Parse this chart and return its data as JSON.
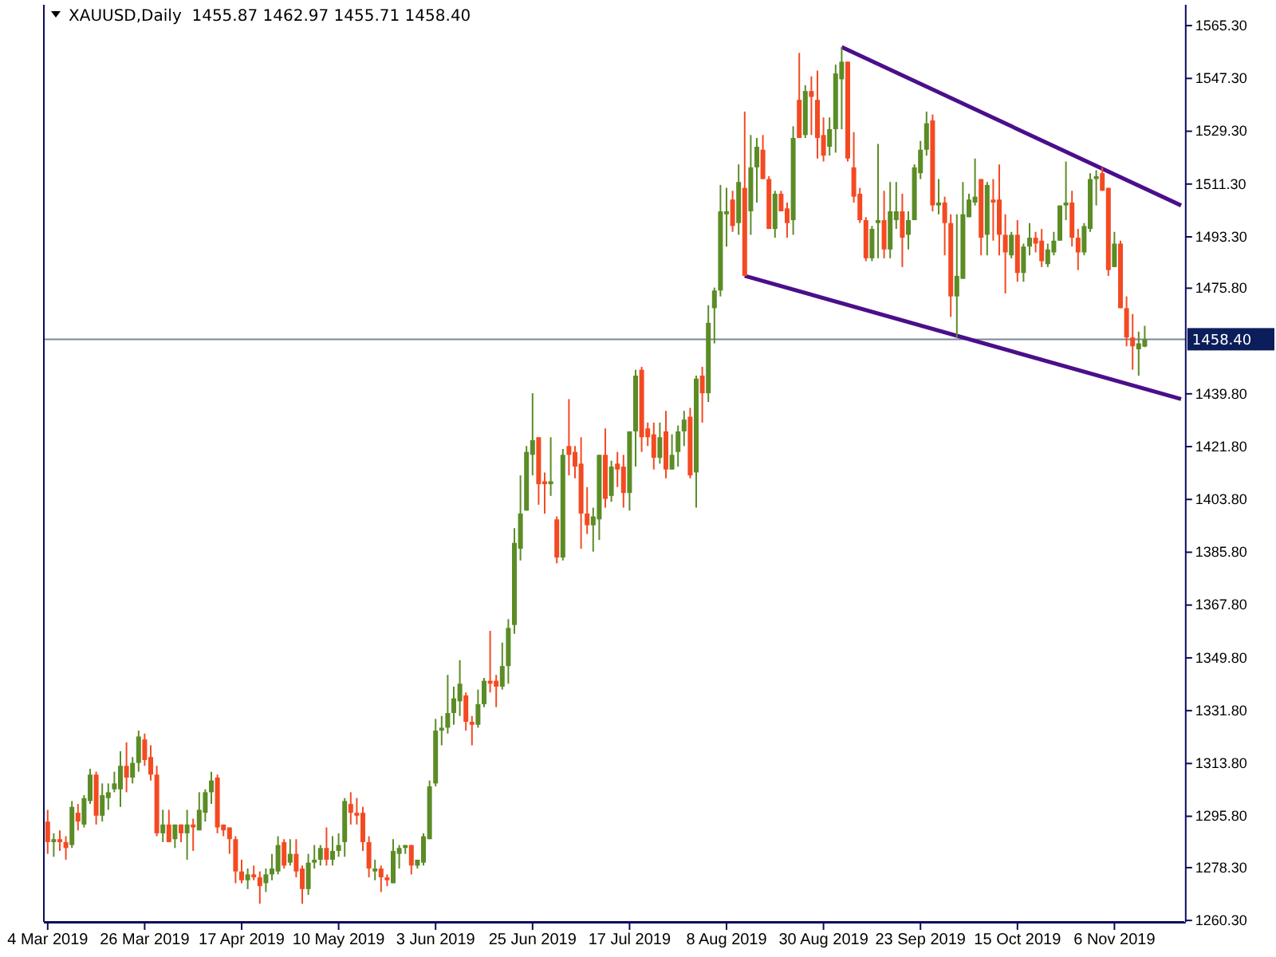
{
  "chart_data": {
    "type": "candlestick",
    "title": "XAUUSD,Daily  1455.87 1462.97 1455.71 1458.40",
    "categories": [
      "4 Mar 2019",
      null,
      null,
      null,
      null,
      null,
      null,
      null,
      null,
      null,
      null,
      null,
      null,
      null,
      null,
      null,
      "26 Mar 2019",
      null,
      null,
      null,
      null,
      null,
      null,
      null,
      null,
      null,
      null,
      null,
      null,
      null,
      null,
      null,
      "17 Apr 2019",
      null,
      null,
      null,
      null,
      null,
      null,
      null,
      null,
      null,
      null,
      null,
      null,
      null,
      null,
      null,
      "10 May 2019",
      null,
      null,
      null,
      null,
      null,
      null,
      null,
      null,
      null,
      null,
      null,
      null,
      null,
      null,
      null,
      "3 Jun 2019",
      null,
      null,
      null,
      null,
      null,
      null,
      null,
      null,
      null,
      null,
      null,
      null,
      null,
      null,
      null,
      "25 Jun 2019",
      null,
      null,
      null,
      null,
      null,
      null,
      null,
      null,
      null,
      null,
      null,
      null,
      null,
      null,
      null,
      "17 Jul 2019",
      null,
      null,
      null,
      null,
      null,
      null,
      null,
      null,
      null,
      null,
      null,
      null,
      null,
      null,
      null,
      "8 Aug 2019",
      null,
      null,
      null,
      null,
      null,
      null,
      null,
      null,
      null,
      null,
      null,
      null,
      null,
      null,
      null,
      "30 Aug 2019",
      null,
      null,
      null,
      null,
      null,
      null,
      null,
      null,
      null,
      null,
      null,
      null,
      null,
      null,
      null,
      "23 Sep 2019",
      null,
      null,
      null,
      null,
      null,
      null,
      null,
      null,
      null,
      null,
      null,
      null,
      null,
      null,
      null,
      "15 Oct 2019",
      null,
      null,
      null,
      null,
      null,
      null,
      null,
      null,
      null,
      null,
      null,
      null,
      null,
      null,
      null,
      "6 Nov 2019",
      null,
      null,
      null,
      null,
      null,
      null,
      null,
      null,
      null,
      null,
      null
    ],
    "ohlc": [
      [
        1294,
        1298,
        1283,
        1287
      ],
      [
        1287,
        1290,
        1282,
        1288
      ],
      [
        1288,
        1291,
        1284,
        1287
      ],
      [
        1287,
        1289,
        1281,
        1285
      ],
      [
        1286,
        1301,
        1285,
        1299
      ],
      [
        1297,
        1300,
        1291,
        1294
      ],
      [
        1293,
        1303,
        1292,
        1302
      ],
      [
        1301,
        1312,
        1300,
        1310
      ],
      [
        1310,
        1311,
        1293,
        1296
      ],
      [
        1296,
        1307,
        1294,
        1303
      ],
      [
        1302,
        1307,
        1298,
        1304
      ],
      [
        1305,
        1311,
        1304,
        1307
      ],
      [
        1305,
        1318,
        1299,
        1313
      ],
      [
        1313,
        1321,
        1304,
        1309
      ],
      [
        1309,
        1316,
        1307,
        1314
      ],
      [
        1314,
        1325,
        1311,
        1323
      ],
      [
        1322,
        1324,
        1313,
        1315
      ],
      [
        1316,
        1320,
        1308,
        1310
      ],
      [
        1310,
        1313,
        1289,
        1290
      ],
      [
        1290,
        1298,
        1287,
        1293
      ],
      [
        1293,
        1298,
        1287,
        1287
      ],
      [
        1288,
        1293,
        1285,
        1293
      ],
      [
        1293,
        1293,
        1287,
        1290
      ],
      [
        1290,
        1298,
        1281,
        1293
      ],
      [
        1293,
        1295,
        1284,
        1292
      ],
      [
        1291,
        1304,
        1291,
        1298
      ],
      [
        1297,
        1305,
        1294,
        1304
      ],
      [
        1304,
        1311,
        1300,
        1308
      ],
      [
        1309,
        1310,
        1290,
        1292
      ],
      [
        1293,
        1293,
        1289,
        1291
      ],
      [
        1292,
        1292,
        1283,
        1288
      ],
      [
        1288,
        1289,
        1273,
        1277
      ],
      [
        1277,
        1281,
        1273,
        1274
      ],
      [
        1274,
        1278,
        1271,
        1276
      ],
      [
        1276,
        1279,
        1274,
        1275
      ],
      [
        1275,
        1277,
        1266,
        1272
      ],
      [
        1273,
        1278,
        1270,
        1276
      ],
      [
        1276,
        1283,
        1274,
        1278
      ],
      [
        1277,
        1289,
        1276,
        1286
      ],
      [
        1287,
        1288,
        1278,
        1279
      ],
      [
        1280,
        1288,
        1279,
        1283
      ],
      [
        1283,
        1288,
        1275,
        1277
      ],
      [
        1278,
        1279,
        1266,
        1271
      ],
      [
        1271,
        1283,
        1269,
        1280
      ],
      [
        1280,
        1286,
        1278,
        1281
      ],
      [
        1281,
        1286,
        1279,
        1285
      ],
      [
        1285,
        1292,
        1279,
        1281
      ],
      [
        1281,
        1289,
        1279,
        1284
      ],
      [
        1284,
        1290,
        1282,
        1286
      ],
      [
        1287,
        1302,
        1282,
        1301
      ],
      [
        1300,
        1304,
        1293,
        1297
      ],
      [
        1297,
        1302,
        1293,
        1296
      ],
      [
        1297,
        1299,
        1284,
        1287
      ],
      [
        1287,
        1289,
        1275,
        1278
      ],
      [
        1277,
        1281,
        1274,
        1278
      ],
      [
        1278,
        1279,
        1270,
        1275
      ],
      [
        1275,
        1276,
        1272,
        1274
      ],
      [
        1273,
        1288,
        1273,
        1284
      ],
      [
        1283,
        1286,
        1278,
        1285
      ],
      [
        1285,
        1286,
        1283,
        1286
      ],
      [
        1286,
        1286,
        1276,
        1279
      ],
      [
        1279,
        1281,
        1278,
        1281
      ],
      [
        1280,
        1290,
        1279,
        1289
      ],
      [
        1288,
        1308,
        1288,
        1306
      ],
      [
        1307,
        1329,
        1306,
        1325
      ],
      [
        1325,
        1330,
        1320,
        1326
      ],
      [
        1326,
        1344,
        1324,
        1331
      ],
      [
        1331,
        1340,
        1327,
        1336
      ],
      [
        1335,
        1349,
        1330,
        1341
      ],
      [
        1337,
        1338,
        1325,
        1328
      ],
      [
        1328,
        1330,
        1320,
        1327
      ],
      [
        1327,
        1339,
        1326,
        1334
      ],
      [
        1334,
        1343,
        1333,
        1342
      ],
      [
        1342,
        1359,
        1338,
        1341
      ],
      [
        1342,
        1344,
        1333,
        1340
      ],
      [
        1340,
        1355,
        1339,
        1347
      ],
      [
        1347,
        1363,
        1341,
        1360
      ],
      [
        1361,
        1394,
        1358,
        1389
      ],
      [
        1387,
        1412,
        1383,
        1399
      ],
      [
        1400,
        1422,
        1400,
        1420
      ],
      [
        1419,
        1440,
        1412,
        1424
      ],
      [
        1425,
        1425,
        1402,
        1409
      ],
      [
        1410,
        1413,
        1399,
        1409
      ],
      [
        1409,
        1425,
        1405,
        1410
      ],
      [
        1397,
        1398,
        1382,
        1384
      ],
      [
        1384,
        1421,
        1383,
        1419
      ],
      [
        1422,
        1438,
        1412,
        1419
      ],
      [
        1420,
        1422,
        1411,
        1415
      ],
      [
        1416,
        1425,
        1387,
        1399
      ],
      [
        1399,
        1408,
        1392,
        1395
      ],
      [
        1395,
        1401,
        1386,
        1398
      ],
      [
        1397,
        1419,
        1390,
        1419
      ],
      [
        1419,
        1428,
        1401,
        1404
      ],
      [
        1405,
        1417,
        1403,
        1415
      ],
      [
        1416,
        1420,
        1408,
        1414
      ],
      [
        1415,
        1419,
        1401,
        1406
      ],
      [
        1406,
        1427,
        1400,
        1427
      ],
      [
        1427,
        1448,
        1415,
        1446
      ],
      [
        1448,
        1449,
        1420,
        1425
      ],
      [
        1428,
        1430,
        1422,
        1425
      ],
      [
        1426,
        1430,
        1414,
        1418
      ],
      [
        1418,
        1430,
        1416,
        1425
      ],
      [
        1427,
        1434,
        1411,
        1414
      ],
      [
        1414,
        1426,
        1414,
        1419
      ],
      [
        1420,
        1429,
        1415,
        1427
      ],
      [
        1427,
        1434,
        1422,
        1431
      ],
      [
        1432,
        1435,
        1411,
        1412
      ],
      [
        1413,
        1446,
        1401,
        1445
      ],
      [
        1446,
        1449,
        1430,
        1440
      ],
      [
        1440,
        1470,
        1437,
        1464
      ],
      [
        1469,
        1476,
        1457,
        1475
      ],
      [
        1475,
        1511,
        1473,
        1502
      ],
      [
        1501,
        1510,
        1490,
        1502
      ],
      [
        1506,
        1509,
        1495,
        1497
      ],
      [
        1498,
        1518,
        1494,
        1512
      ],
      [
        1510,
        1536,
        1480,
        1480
      ],
      [
        1502,
        1528,
        1494,
        1517
      ],
      [
        1517,
        1527,
        1505,
        1524
      ],
      [
        1523,
        1528,
        1513,
        1513
      ],
      [
        1513,
        1514,
        1496,
        1496
      ],
      [
        1496,
        1509,
        1493,
        1508
      ],
      [
        1508,
        1509,
        1502,
        1502
      ],
      [
        1503,
        1505,
        1493,
        1498
      ],
      [
        1499,
        1531,
        1494,
        1527
      ],
      [
        1540,
        1556,
        1527,
        1527
      ],
      [
        1528,
        1545,
        1527,
        1543
      ],
      [
        1543,
        1548,
        1528,
        1541
      ],
      [
        1540,
        1550,
        1520,
        1527
      ],
      [
        1528,
        1534,
        1519,
        1521
      ],
      [
        1524,
        1534,
        1521,
        1530
      ],
      [
        1530,
        1552,
        1522,
        1549
      ],
      [
        1547,
        1558,
        1530,
        1553
      ],
      [
        1553,
        1553,
        1519,
        1520
      ],
      [
        1517,
        1529,
        1505,
        1507
      ],
      [
        1508,
        1510,
        1498,
        1499
      ],
      [
        1499,
        1500,
        1485,
        1486
      ],
      [
        1486,
        1497,
        1485,
        1496
      ],
      [
        1498,
        1525,
        1486,
        1499
      ],
      [
        1499,
        1509,
        1486,
        1489
      ],
      [
        1489,
        1512,
        1486,
        1502
      ],
      [
        1499,
        1512,
        1496,
        1502
      ],
      [
        1502,
        1508,
        1483,
        1493
      ],
      [
        1494,
        1502,
        1489,
        1499
      ],
      [
        1499,
        1518,
        1499,
        1517
      ],
      [
        1515,
        1526,
        1513,
        1523
      ],
      [
        1523,
        1536,
        1521,
        1532
      ],
      [
        1533,
        1535,
        1502,
        1504
      ],
      [
        1504,
        1513,
        1501,
        1505
      ],
      [
        1505,
        1507,
        1487,
        1498
      ],
      [
        1498,
        1501,
        1466,
        1473
      ],
      [
        1473,
        1501,
        1459,
        1480
      ],
      [
        1479,
        1512,
        1479,
        1501
      ],
      [
        1500,
        1508,
        1500,
        1506
      ],
      [
        1505,
        1520,
        1504,
        1507
      ],
      [
        1513,
        1513,
        1487,
        1493
      ],
      [
        1494,
        1512,
        1487,
        1511
      ],
      [
        1506,
        1513,
        1492,
        1505
      ],
      [
        1506,
        1518,
        1487,
        1494
      ],
      [
        1494,
        1501,
        1474,
        1488
      ],
      [
        1487,
        1495,
        1486,
        1494
      ],
      [
        1494,
        1499,
        1478,
        1481
      ],
      [
        1481,
        1491,
        1478,
        1490
      ],
      [
        1490,
        1498,
        1487,
        1493
      ],
      [
        1493,
        1495,
        1488,
        1491
      ],
      [
        1492,
        1496,
        1483,
        1485
      ],
      [
        1484,
        1491,
        1483,
        1489
      ],
      [
        1488,
        1495,
        1487,
        1492
      ],
      [
        1492,
        1504,
        1492,
        1504
      ],
      [
        1504,
        1519,
        1499,
        1505
      ],
      [
        1505,
        1509,
        1490,
        1493
      ],
      [
        1493,
        1496,
        1482,
        1488
      ],
      [
        1488,
        1498,
        1487,
        1497
      ],
      [
        1496,
        1515,
        1495,
        1513
      ],
      [
        1513,
        1516,
        1504,
        1514
      ],
      [
        1515,
        1517,
        1509,
        1509
      ],
      [
        1510,
        1510,
        1480,
        1482
      ],
      [
        1483,
        1495,
        1483,
        1491
      ],
      [
        1491,
        1492,
        1469,
        1469
      ],
      [
        1469,
        1473,
        1456,
        1459
      ],
      [
        1459,
        1467,
        1448,
        1456
      ],
      [
        1455,
        1461,
        1446,
        1457
      ],
      [
        1455.87,
        1462.97,
        1455.71,
        1458.4
      ],
      null,
      null,
      null,
      null,
      null,
      null
    ],
    "colors": [
      "#f44a22",
      "#5b8c26",
      "#f44a22",
      "#f44a22",
      "#5b8c26",
      "#f44a22",
      "#5b8c26",
      "#5b8c26",
      "#f44a22",
      "#5b8c26",
      "#5b8c26",
      "#5b8c26",
      "#5b8c26",
      "#f44a22",
      "#5b8c26",
      "#5b8c26",
      "#f44a22",
      "#f44a22",
      "#f44a22",
      "#5b8c26",
      "#f44a22",
      "#5b8c26",
      "#f44a22",
      "#5b8c26",
      "#f44a22",
      "#5b8c26",
      "#5b8c26",
      "#5b8c26",
      "#f44a22",
      "#f44a22",
      "#f44a22",
      "#f44a22",
      "#f44a22",
      "#5b8c26",
      "#f44a22",
      "#f44a22",
      "#5b8c26",
      "#5b8c26",
      "#5b8c26",
      "#f44a22",
      "#5b8c26",
      "#f44a22",
      "#f44a22",
      "#5b8c26",
      "#5b8c26",
      "#5b8c26",
      "#f44a22",
      "#5b8c26",
      "#5b8c26",
      "#5b8c26",
      "#f44a22",
      "#f44a22",
      "#f44a22",
      "#f44a22",
      "#5b8c26",
      "#f44a22",
      "#f44a22",
      "#5b8c26",
      "#5b8c26",
      "#5b8c26",
      "#f44a22",
      "#5b8c26",
      "#5b8c26",
      "#5b8c26",
      "#5b8c26",
      "#5b8c26",
      "#5b8c26",
      "#5b8c26",
      "#5b8c26",
      "#f44a22",
      "#f44a22",
      "#5b8c26",
      "#5b8c26",
      "#f44a22",
      "#f44a22",
      "#5b8c26",
      "#5b8c26",
      "#5b8c26",
      "#5b8c26",
      "#5b8c26",
      "#5b8c26",
      "#f44a22",
      "#f44a22",
      "#5b8c26",
      "#f44a22",
      "#5b8c26",
      "#f44a22",
      "#f44a22",
      "#f44a22",
      "#f44a22",
      "#5b8c26",
      "#5b8c26",
      "#f44a22",
      "#5b8c26",
      "#f44a22",
      "#f44a22",
      "#5b8c26",
      "#5b8c26",
      "#f44a22",
      "#f44a22",
      "#f44a22",
      "#5b8c26",
      "#f44a22",
      "#5b8c26",
      "#5b8c26",
      "#5b8c26",
      "#f44a22",
      "#5b8c26",
      "#f44a22",
      "#5b8c26",
      "#5b8c26",
      "#5b8c26",
      "#5b8c26",
      "#f44a22",
      "#5b8c26",
      "#f44a22",
      "#5b8c26",
      "#5b8c26",
      "#f44a22",
      "#f44a22",
      "#5b8c26",
      "#f44a22",
      "#f44a22",
      "#5b8c26",
      "#f44a22",
      "#5b8c26",
      "#f44a22",
      "#f44a22",
      "#f44a22",
      "#5b8c26",
      "#5b8c26",
      "#5b8c26",
      "#f44a22",
      "#f44a22",
      "#f44a22",
      "#f44a22",
      "#5b8c26",
      "#5b8c26",
      "#f44a22",
      "#5b8c26",
      "#5b8c26",
      "#f44a22",
      "#5b8c26",
      "#5b8c26",
      "#5b8c26",
      "#5b8c26",
      "#f44a22",
      "#5b8c26",
      "#f44a22",
      "#f44a22",
      "#5b8c26",
      "#5b8c26",
      "#5b8c26",
      "#5b8c26",
      "#f44a22",
      "#5b8c26",
      "#f44a22",
      "#f44a22",
      "#f44a22",
      "#5b8c26",
      "#f44a22",
      "#5b8c26",
      "#5b8c26",
      "#f44a22",
      "#f44a22",
      "#5b8c26",
      "#5b8c26",
      "#5b8c26",
      "#5b8c26",
      "#f44a22",
      "#f44a22",
      "#5b8c26",
      "#5b8c26",
      "#5b8c26",
      "#f44a22",
      "#f44a22",
      "#5b8c26",
      "#f44a22",
      "#f44a22",
      "#f44a22",
      "#5b8c26",
      "#5b8c26",
      null,
      null,
      null,
      null,
      null,
      null
    ],
    "series": [
      {
        "type": "line",
        "color": "#4b0f8a",
        "values": [
          null,
          null,
          null,
          null,
          null,
          null,
          null,
          null,
          null,
          null,
          null,
          null,
          null,
          null,
          null,
          null,
          null,
          null,
          null,
          null,
          null,
          null,
          null,
          null,
          null,
          null,
          null,
          null,
          null,
          null,
          null,
          null,
          null,
          null,
          null,
          null,
          null,
          null,
          null,
          null,
          null,
          null,
          null,
          null,
          null,
          null,
          null,
          null,
          null,
          null,
          null,
          null,
          null,
          null,
          null,
          null,
          null,
          null,
          null,
          null,
          null,
          null,
          null,
          null,
          null,
          null,
          null,
          null,
          null,
          null,
          null,
          null,
          null,
          null,
          null,
          null,
          null,
          null,
          null,
          null,
          null,
          null,
          null,
          null,
          null,
          null,
          null,
          null,
          null,
          null,
          null,
          null,
          null,
          null,
          null,
          null,
          null,
          null,
          null,
          null,
          null,
          null,
          null,
          null,
          null,
          null,
          null,
          null,
          null,
          null,
          null,
          null,
          null,
          null,
          null,
          null,
          null,
          null,
          null,
          null,
          null,
          null,
          null,
          null,
          null,
          null,
          null,
          null,
          null,
          null,
          null,
          1558,
          null,
          null,
          null,
          null,
          null,
          null,
          null,
          null,
          null,
          null,
          null,
          null,
          null,
          null,
          null,
          null,
          null,
          null,
          null,
          null,
          null,
          null,
          null,
          null,
          null,
          null,
          null,
          null,
          null,
          null,
          null,
          null,
          null,
          null,
          null,
          null,
          null,
          null,
          null,
          null,
          null,
          null,
          null,
          null,
          null,
          null,
          null,
          null,
          null,
          null,
          null,
          null,
          null,
          null,
          null,
          1504
        ]
      },
      {
        "type": "line",
        "color": "#4b0f8a",
        "values": [
          null,
          null,
          null,
          null,
          null,
          null,
          null,
          null,
          null,
          null,
          null,
          null,
          null,
          null,
          null,
          null,
          null,
          null,
          null,
          null,
          null,
          null,
          null,
          null,
          null,
          null,
          null,
          null,
          null,
          null,
          null,
          null,
          null,
          null,
          null,
          null,
          null,
          null,
          null,
          null,
          null,
          null,
          null,
          null,
          null,
          null,
          null,
          null,
          null,
          null,
          null,
          null,
          null,
          null,
          null,
          null,
          null,
          null,
          null,
          null,
          null,
          null,
          null,
          null,
          null,
          null,
          null,
          null,
          null,
          null,
          null,
          null,
          null,
          null,
          null,
          null,
          null,
          null,
          null,
          null,
          null,
          null,
          null,
          null,
          null,
          null,
          null,
          null,
          null,
          null,
          null,
          null,
          null,
          null,
          null,
          null,
          null,
          null,
          null,
          null,
          null,
          null,
          null,
          null,
          null,
          null,
          null,
          null,
          null,
          null,
          null,
          null,
          null,
          null,
          null,
          1480,
          null,
          null,
          null,
          null,
          null,
          null,
          null,
          null,
          null,
          null,
          null,
          null,
          null,
          null,
          null,
          null,
          null,
          null,
          null,
          null,
          null,
          null,
          null,
          null,
          null,
          null,
          null,
          null,
          null,
          null,
          null,
          null,
          null,
          null,
          null,
          null,
          null,
          null,
          null,
          null,
          null,
          null,
          null,
          null,
          null,
          null,
          null,
          null,
          null,
          null,
          null,
          null,
          null,
          null,
          null,
          null,
          null,
          null,
          null,
          null,
          null,
          null,
          null,
          null,
          null,
          null,
          null,
          null,
          null,
          null,
          null,
          1438
        ]
      }
    ],
    "ylim": [
      1259.8,
      1572.4
    ],
    "yticks": [
      {
        "value": 1565.3,
        "label": "1565.30"
      },
      {
        "value": 1547.3,
        "label": "1547.30"
      },
      {
        "value": 1529.3,
        "label": "1529.30"
      },
      {
        "value": 1511.3,
        "label": "1511.30"
      },
      {
        "value": 1493.3,
        "label": "1493.30"
      },
      {
        "value": 1475.8,
        "label": "1475.80"
      },
      {
        "value": 1439.8,
        "label": "1439.80"
      },
      {
        "value": 1421.8,
        "label": "1421.80"
      },
      {
        "value": 1403.8,
        "label": "1403.80"
      },
      {
        "value": 1385.8,
        "label": "1385.80"
      },
      {
        "value": 1367.8,
        "label": "1367.80"
      },
      {
        "value": 1349.8,
        "label": "1349.80"
      },
      {
        "value": 1331.8,
        "label": "1331.80"
      },
      {
        "value": 1313.8,
        "label": "1313.80"
      },
      {
        "value": 1295.8,
        "label": "1295.80"
      },
      {
        "value": 1278.3,
        "label": "1278.30"
      },
      {
        "value": 1260.3,
        "label": "1260.30"
      }
    ],
    "ref_lines": [
      {
        "axis": "y",
        "value": 1458.4,
        "label": "1458.40",
        "color": "#778899"
      }
    ]
  }
}
